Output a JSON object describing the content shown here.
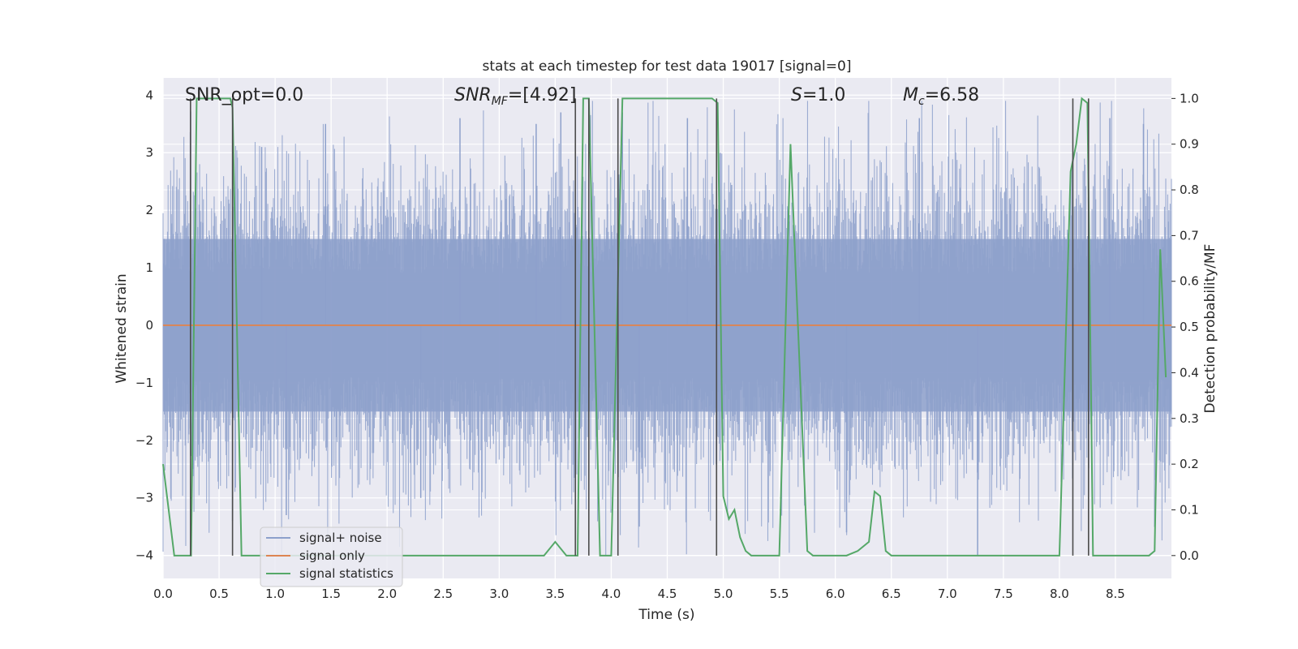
{
  "chart_data": {
    "type": "line",
    "title": "stats at each timestep for test data 19017 [signal=0]",
    "xlabel": "Time (s)",
    "ylabel": "Whitened strain",
    "y2label": "Detection probability/MF",
    "xlim": [
      0.0,
      9.0
    ],
    "ylim": [
      -4.4,
      4.3
    ],
    "y2lim": [
      -0.05,
      1.045
    ],
    "xticks": [
      0.0,
      0.5,
      1.0,
      1.5,
      2.0,
      2.5,
      3.0,
      3.5,
      4.0,
      4.5,
      5.0,
      5.5,
      6.0,
      6.5,
      7.0,
      7.5,
      8.0,
      8.5
    ],
    "xtick_labels": [
      "0.0",
      "0.5",
      "1.0",
      "1.5",
      "2.0",
      "2.5",
      "3.0",
      "3.5",
      "4.0",
      "4.5",
      "5.0",
      "5.5",
      "6.0",
      "6.5",
      "7.0",
      "7.5",
      "8.0",
      "8.5"
    ],
    "yticks": [
      -4,
      -3,
      -2,
      -1,
      0,
      1,
      2,
      3,
      4
    ],
    "ytick_labels": [
      "−4",
      "−3",
      "−2",
      "−1",
      "0",
      "1",
      "2",
      "3",
      "4"
    ],
    "y2ticks": [
      0.0,
      0.1,
      0.2,
      0.3,
      0.4,
      0.5,
      0.6,
      0.7,
      0.8,
      0.9,
      1.0
    ],
    "y2tick_labels": [
      "0.0",
      "0.1",
      "0.2",
      "0.3",
      "0.4",
      "0.5",
      "0.6",
      "0.7",
      "0.8",
      "0.9",
      "1.0"
    ],
    "annotations": [
      {
        "name": "snr-opt",
        "text": "SNR_opt=0.0",
        "x": 0.2,
        "y": 3.9
      },
      {
        "name": "snr-mf",
        "text_main": "SNR",
        "text_sub": "MF",
        "text_rest": "=[4.92]",
        "x": 2.6,
        "y": 3.9
      },
      {
        "name": "s-stat",
        "text_main": "S",
        "text_rest": "=1.0",
        "x": 5.6,
        "y": 3.9
      },
      {
        "name": "chirp-mass",
        "text_main": "M",
        "text_sub": "c",
        "text_rest": "=6.58",
        "x": 6.6,
        "y": 3.9
      }
    ],
    "legend": {
      "placement": "lower-left",
      "entries": [
        {
          "label": "signal+ noise",
          "color": "#8da0cb"
        },
        {
          "label": "signal only",
          "color": "#dd8452"
        },
        {
          "label": "signal statistics",
          "color": "#55a868"
        }
      ]
    },
    "series": [
      {
        "name": "signal+ noise",
        "color": "#8da0cb",
        "style": "dense noise fill",
        "t_range": [
          0.0,
          9.0
        ],
        "envelope_rms": 1.0,
        "peak_excursions": [
          [
            0.27,
            -2.5
          ],
          [
            0.62,
            -3.4
          ],
          [
            0.88,
            3.1
          ],
          [
            1.1,
            -3.3
          ],
          [
            1.45,
            3.5
          ],
          [
            2.3,
            -3.0
          ],
          [
            2.65,
            3.6
          ],
          [
            3.33,
            3.5
          ],
          [
            3.55,
            3.7
          ],
          [
            4.1,
            3.7
          ],
          [
            4.25,
            -3.5
          ],
          [
            4.68,
            3.6
          ],
          [
            6.1,
            -3.6
          ],
          [
            6.75,
            3.6
          ],
          [
            7.27,
            -4.0
          ],
          [
            8.45,
            3.6
          ],
          [
            8.75,
            3.5
          ]
        ]
      },
      {
        "name": "signal only",
        "color": "#dd8452",
        "x": [
          0.0,
          9.0
        ],
        "y": [
          0.0,
          0.0
        ]
      },
      {
        "name": "signal statistics",
        "color": "#55a868",
        "axis": "right",
        "x": [
          0.0,
          0.05,
          0.1,
          0.2,
          0.25,
          0.3,
          0.4,
          0.5,
          0.6,
          0.62,
          0.7,
          0.8,
          0.9,
          1.0,
          1.5,
          2.0,
          2.5,
          3.0,
          3.4,
          3.5,
          3.6,
          3.7,
          3.75,
          3.8,
          3.9,
          3.95,
          4.0,
          4.1,
          4.15,
          4.5,
          4.9,
          4.95,
          5.0,
          5.05,
          5.1,
          5.15,
          5.2,
          5.25,
          5.3,
          5.45,
          5.5,
          5.6,
          5.65,
          5.75,
          5.8,
          5.9,
          6.1,
          6.2,
          6.3,
          6.35,
          6.4,
          6.45,
          6.5,
          6.6,
          7.0,
          7.5,
          8.0,
          8.1,
          8.15,
          8.2,
          8.25,
          8.3,
          8.4,
          8.8,
          8.85,
          8.9,
          8.95
        ],
        "y": [
          0.2,
          0.1,
          0.0,
          0.0,
          0.0,
          1.0,
          1.0,
          1.0,
          1.0,
          0.98,
          0.0,
          0.0,
          0.0,
          0.0,
          0.0,
          0.0,
          0.0,
          0.0,
          0.0,
          0.03,
          0.0,
          0.0,
          1.0,
          1.0,
          0.0,
          0.0,
          0.0,
          1.0,
          1.0,
          1.0,
          1.0,
          0.99,
          0.13,
          0.08,
          0.1,
          0.04,
          0.01,
          0.0,
          0.0,
          0.0,
          0.0,
          0.9,
          0.6,
          0.01,
          0.0,
          0.0,
          0.0,
          0.01,
          0.03,
          0.14,
          0.13,
          0.01,
          0.0,
          0.0,
          0.0,
          0.0,
          0.0,
          0.84,
          0.9,
          1.0,
          0.99,
          0.0,
          0.0,
          0.0,
          0.01,
          0.67,
          0.39
        ]
      }
    ],
    "vertical_markers": {
      "color": "#4c4c4c",
      "x": [
        0.245,
        0.62,
        3.68,
        3.8,
        4.06,
        4.94,
        8.12,
        8.26
      ],
      "y2_from": 0.0,
      "y2_to": 1.0
    }
  }
}
